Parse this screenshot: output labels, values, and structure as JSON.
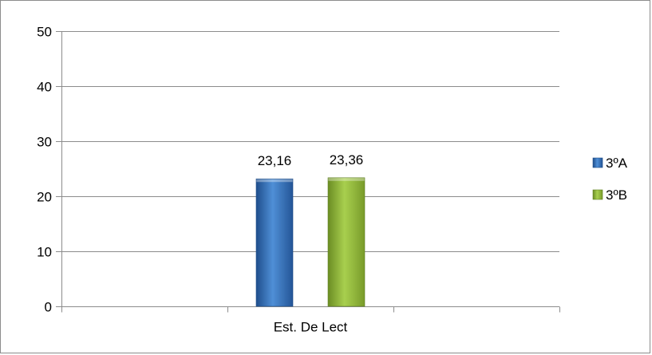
{
  "chart_data": {
    "type": "bar",
    "categories": [
      "Est. De Lect"
    ],
    "series": [
      {
        "name": "3ºA",
        "values": [
          23.16
        ],
        "labels": [
          "23,16"
        ],
        "color": "#3a73b6"
      },
      {
        "name": "3ºB",
        "values": [
          23.36
        ],
        "labels": [
          "23,36"
        ],
        "color": "#8db53b"
      }
    ],
    "ylim": [
      0,
      50
    ],
    "yticks": [
      0,
      10,
      20,
      30,
      40,
      50
    ],
    "grid": true,
    "legend": "right",
    "title": "",
    "xlabel": "",
    "ylabel": ""
  }
}
